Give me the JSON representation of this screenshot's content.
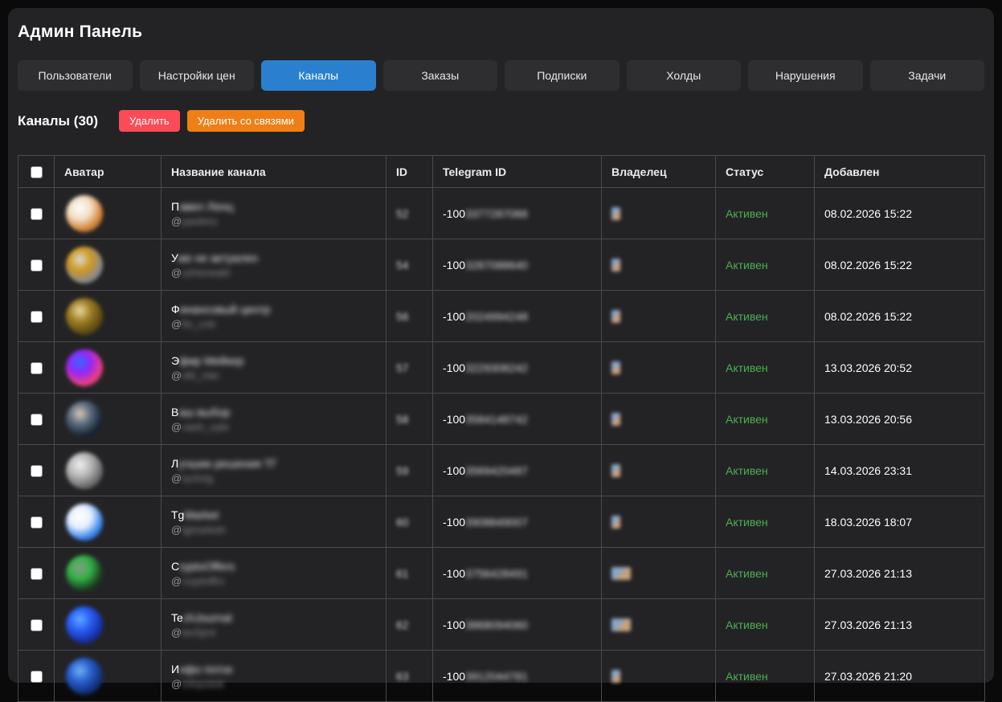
{
  "page_title": "Админ Панель",
  "tabs": [
    {
      "label": "Пользователи",
      "active": false
    },
    {
      "label": "Настройки цен",
      "active": false
    },
    {
      "label": "Каналы",
      "active": true
    },
    {
      "label": "Заказы",
      "active": false
    },
    {
      "label": "Подписки",
      "active": false
    },
    {
      "label": "Холды",
      "active": false
    },
    {
      "label": "Нарушения",
      "active": false
    },
    {
      "label": "Задачи",
      "active": false
    }
  ],
  "section": {
    "heading": "Каналы (30)",
    "buttons": {
      "delete": "Удалить",
      "delete_with_links": "Удалить со связями"
    }
  },
  "colors": {
    "accent_blue": "#2a80cf",
    "danger_red": "#fa4b57",
    "warning_orange": "#ee7f16",
    "status_green": "#4caf50",
    "panel_bg": "#232326",
    "outer_bg": "#0a0a0a"
  },
  "table": {
    "headers": {
      "avatar": "Аватар",
      "name": "Название канала",
      "id": "ID",
      "telegram_id": "Telegram ID",
      "owner": "Владелец",
      "status": "Статус",
      "added": "Добавлен"
    },
    "rows": [
      {
        "name_prefix": "П",
        "name_blurred": "авел Ленц",
        "username_prefix": "@",
        "username_blurred": "pavlenz",
        "id_blurred": "52",
        "tg_prefix": "-100",
        "tg_blurred": "3377287066",
        "owner_wide": false,
        "status": "Активен",
        "added": "08.02.2026 15:22",
        "avatar_colors": [
          "#fdfdfb",
          "#f0e0cc",
          "#c87f3a",
          "#7a4418"
        ]
      },
      {
        "name_prefix": "У",
        "name_blurred": "же не актуален",
        "username_prefix": "@",
        "username_blurred": "uzheneakt",
        "id_blurred": "54",
        "tg_prefix": "-100",
        "tg_blurred": "3287088640",
        "owner_wide": false,
        "status": "Активен",
        "added": "08.02.2026 15:22",
        "avatar_colors": [
          "#d8d8d8",
          "#c9992f",
          "#8a8a8a",
          "#3a3a3a"
        ]
      },
      {
        "name_prefix": "Ф",
        "name_blurred": "инансовый центр",
        "username_prefix": "@",
        "username_blurred": "fin_cntr",
        "id_blurred": "56",
        "tg_prefix": "-100",
        "tg_blurred": "2024994248",
        "owner_wide": false,
        "status": "Активен",
        "added": "08.02.2026 15:22",
        "avatar_colors": [
          "#e8d9a8",
          "#9a7d2e",
          "#5a4a1a",
          "#2e2410"
        ]
      },
      {
        "name_prefix": "Э",
        "name_blurred": "фир Мейкер",
        "username_prefix": "@",
        "username_blurred": "efir_mkr",
        "id_blurred": "57",
        "tg_prefix": "-100",
        "tg_blurred": "3229308242",
        "owner_wide": false,
        "status": "Активен",
        "added": "13.03.2026 20:52",
        "avatar_colors": [
          "#3a6bf0",
          "#8a2be2",
          "#e0457b",
          "#1a1a2e"
        ]
      },
      {
        "name_prefix": "В",
        "name_blurred": "аш выбор",
        "username_prefix": "@",
        "username_blurred": "vash_vybr",
        "id_blurred": "58",
        "tg_prefix": "-100",
        "tg_blurred": "3584148742",
        "owner_wide": false,
        "status": "Активен",
        "added": "13.03.2026 20:56",
        "avatar_colors": [
          "#d8c8b8",
          "#5a6a7a",
          "#1a2430",
          "#0e141c"
        ]
      },
      {
        "name_prefix": "Л",
        "name_blurred": "учшие решения ТГ",
        "username_prefix": "@",
        "username_blurred": "luchrtg",
        "id_blurred": "59",
        "tg_prefix": "-100",
        "tg_blurred": "3569420487",
        "owner_wide": false,
        "status": "Активен",
        "added": "14.03.2026 23:31",
        "avatar_colors": [
          "#f0f0f0",
          "#b8b8b8",
          "#6a6a6a",
          "#2e2e2e"
        ]
      },
      {
        "name_prefix": "Tg",
        "name_blurred": "Market",
        "username_prefix": "@",
        "username_blurred": "tgmarketr",
        "id_blurred": "60",
        "tg_prefix": "-100",
        "tg_blurred": "3908849007",
        "owner_wide": false,
        "status": "Активен",
        "added": "18.03.2026 18:07",
        "avatar_colors": [
          "#ffffff",
          "#e8f0ff",
          "#3d7fd9",
          "#2456b0"
        ]
      },
      {
        "name_prefix": "C",
        "name_blurred": "ryptoOffers",
        "username_prefix": "@",
        "username_blurred": "cryptoffrs",
        "id_blurred": "61",
        "tg_prefix": "-100",
        "tg_blurred": "3756428491",
        "owner_wide": true,
        "status": "Активен",
        "added": "27.03.2026 21:13",
        "avatar_colors": [
          "#8a9a8a",
          "#3fae4f",
          "#1e3a22",
          "#101c12"
        ]
      },
      {
        "name_prefix": "Te",
        "name_blurred": "chJournal",
        "username_prefix": "@",
        "username_blurred": "techjrnl",
        "id_blurred": "62",
        "tg_prefix": "-100",
        "tg_blurred": "3868094060",
        "owner_wide": true,
        "status": "Активен",
        "added": "27.03.2026 21:13",
        "avatar_colors": [
          "#6aa8ff",
          "#2f5fe0",
          "#1a2f9a",
          "#101c5a"
        ]
      },
      {
        "name_prefix": "И",
        "name_blurred": "нфо поток",
        "username_prefix": "@",
        "username_blurred": "infopotok",
        "id_blurred": "63",
        "tg_prefix": "-100",
        "tg_blurred": "3912044781",
        "owner_wide": false,
        "status": "Активен",
        "added": "27.03.2026 21:20",
        "avatar_colors": [
          "#7ab0e8",
          "#2f5fc0",
          "#16306e",
          "#0c1a3e"
        ]
      }
    ]
  }
}
